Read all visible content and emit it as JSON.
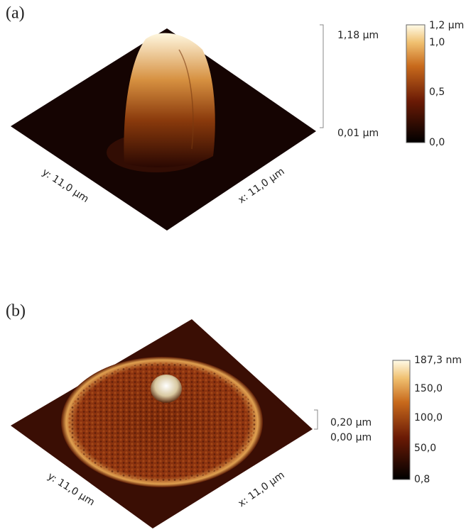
{
  "panels": [
    {
      "label": "(a)",
      "z_axis": {
        "top": "1,18 µm",
        "bottom": "0,01 µm"
      },
      "y_axis": "y: 11,0 µm",
      "x_axis": "x: 11,0 µm",
      "colorbar": [
        "1,2 µm",
        "1,0",
        "0,5",
        "0,0"
      ]
    },
    {
      "label": "(b)",
      "z_axis": {
        "top": "0,20 µm",
        "bottom": "0,00 µm"
      },
      "y_axis": "y: 11,0 µm",
      "x_axis": "x: 11,0 µm",
      "colorbar": [
        "187,3 nm",
        "150,0",
        "100,0",
        "50,0",
        "0,8"
      ]
    }
  ]
}
